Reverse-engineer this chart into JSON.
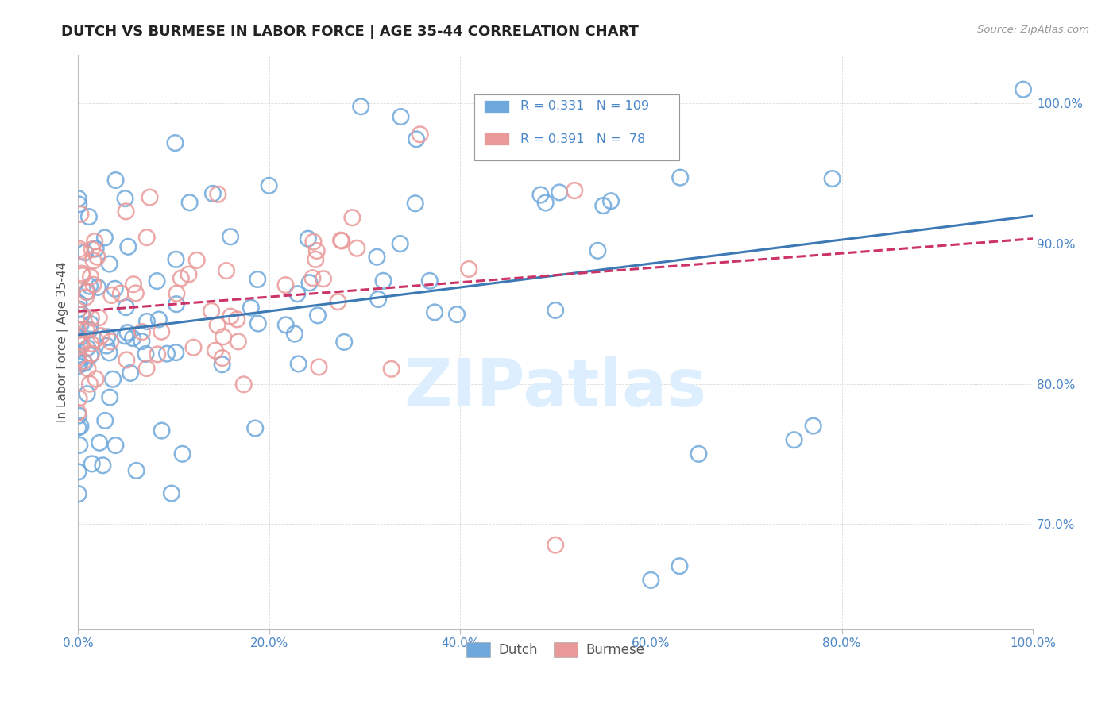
{
  "title": "DUTCH VS BURMESE IN LABOR FORCE | AGE 35-44 CORRELATION CHART",
  "source_text": "Source: ZipAtlas.com",
  "ylabel": "In Labor Force | Age 35-44",
  "xlim": [
    0.0,
    1.0
  ],
  "ylim": [
    0.625,
    1.035
  ],
  "yticks": [
    0.7,
    0.8,
    0.9,
    1.0
  ],
  "ytick_labels": [
    "70.0%",
    "80.0%",
    "90.0%",
    "100.0%"
  ],
  "xticks": [
    0.0,
    0.2,
    0.4,
    0.6,
    0.8,
    1.0
  ],
  "xtick_labels": [
    "0.0%",
    "20.0%",
    "40.0%",
    "60.0%",
    "80.0%",
    "100.0%"
  ],
  "dutch_R": 0.331,
  "dutch_N": 109,
  "burmese_R": 0.391,
  "burmese_N": 78,
  "dutch_color": "#6fa8dc",
  "burmese_color": "#ea9999",
  "dutch_line_color": "#3d7ab5",
  "burmese_line_color": "#cc3366",
  "background_color": "#ffffff",
  "grid_color": "#cccccc",
  "title_color": "#222222",
  "axis_label_color": "#555555",
  "tick_label_color": "#4a86c8",
  "legend_color": "#4a86c8",
  "watermark_text": "ZIPatlas",
  "watermark_color": "#ddeeff"
}
